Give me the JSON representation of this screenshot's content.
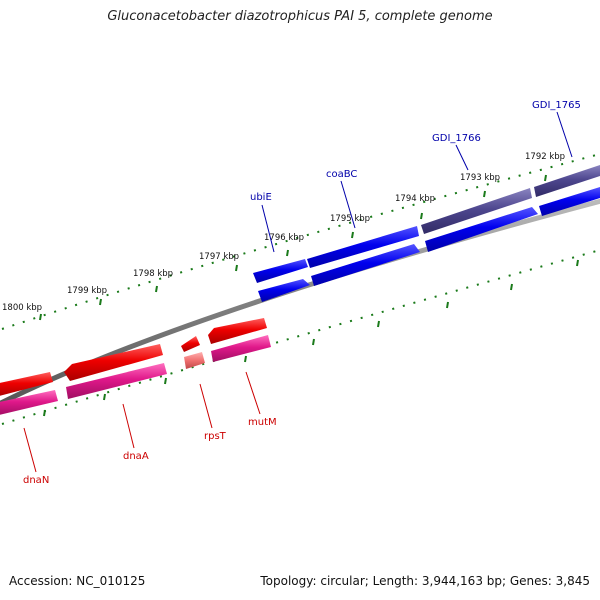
{
  "title": "Gluconacetobacter diazotrophicus PAI 5, complete genome",
  "footer": {
    "accession": "Accession: NC_010125",
    "summary": "Topology: circular; Length: 3,944,163 bp; Genes: 3,845"
  },
  "scale_labels": [
    "1800 kbp",
    "1799 kbp",
    "1798 kbp",
    "1797 kbp",
    "1796 kbp",
    "1795 kbp",
    "1794 kbp",
    "1793 kbp",
    "1792 kbp"
  ],
  "gene_labels": [
    "ubiE",
    "coaBC",
    "GDI_1766",
    "GDI_1765",
    "dnaN",
    "dnaA",
    "rpsT",
    "mutM"
  ],
  "colors": {
    "forward_gene": "#0000ee",
    "forward_gene_dark": "#4a4490",
    "reverse_gene": "#ee0000",
    "reverse_cds": "#e0188a",
    "backbone": "#808080",
    "tick": "#1a7a1a",
    "forward_label": "#0000aa",
    "reverse_label": "#cc0000"
  }
}
